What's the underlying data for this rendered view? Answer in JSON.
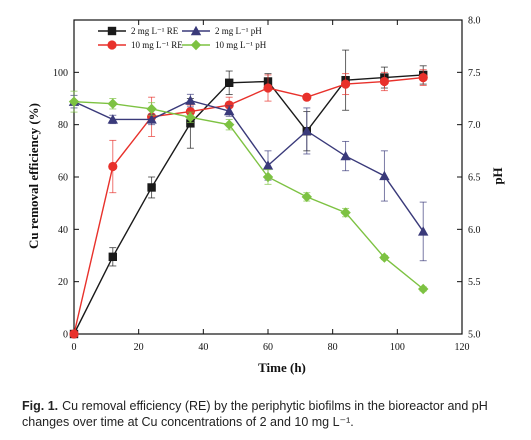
{
  "chart_data": {
    "type": "line",
    "xlabel": "Time (h)",
    "ylabel_left": "Cu removal efficiency (%)",
    "ylabel_right": "pH",
    "xlim": [
      0,
      120
    ],
    "ylim_left": [
      0,
      120
    ],
    "ylim_right": [
      5.0,
      8.0
    ],
    "x_ticks": [
      "0",
      "20",
      "40",
      "60",
      "80",
      "100",
      "120"
    ],
    "y_left_ticks": [
      "0",
      "20",
      "40",
      "60",
      "80",
      "100"
    ],
    "y_right_ticks": [
      "5.0",
      "5.5",
      "6.0",
      "6.5",
      "7.0",
      "7.5",
      "8.0"
    ],
    "grid": false,
    "legend_position": "top-left",
    "series": [
      {
        "name": "2 mg L⁻¹ RE",
        "axis": "left",
        "color": "#1a1a1a",
        "marker": "square",
        "x": [
          0,
          12,
          24,
          36,
          48,
          60,
          72,
          84,
          96,
          108
        ],
        "y": [
          0,
          29.5,
          56,
          80.5,
          96,
          96.5,
          77.5,
          97,
          98,
          99
        ],
        "err": [
          0,
          3.5,
          4,
          9.5,
          4.5,
          3,
          7.5,
          11.5,
          4,
          3.5
        ]
      },
      {
        "name": "10 mg L⁻¹ RE",
        "axis": "left",
        "color": "#e8312b",
        "marker": "circle",
        "x": [
          0,
          12,
          24,
          36,
          48,
          60,
          72,
          84,
          96,
          108
        ],
        "y": [
          0,
          64,
          83,
          85,
          87.5,
          94,
          90.5,
          95.5,
          96.5,
          98
        ],
        "err": [
          0,
          10,
          7.5,
          2.5,
          3,
          5,
          1,
          4,
          3.5,
          3
        ]
      },
      {
        "name": "2 mg L⁻¹ pH",
        "axis": "right",
        "color": "#3a3a7a",
        "marker": "triangle",
        "x": [
          0,
          12,
          24,
          36,
          48,
          60,
          72,
          84,
          96,
          108
        ],
        "y": [
          7.22,
          7.05,
          7.05,
          7.23,
          7.13,
          6.61,
          6.94,
          6.7,
          6.51,
          5.98
        ],
        "err": [
          0.06,
          0.04,
          0.05,
          0.06,
          0.05,
          0.14,
          0.22,
          0.14,
          0.24,
          0.28
        ]
      },
      {
        "name": "10 mg L⁻¹ pH",
        "axis": "right",
        "color": "#7dc242",
        "marker": "diamond",
        "x": [
          0,
          12,
          24,
          36,
          48,
          60,
          72,
          84,
          96,
          108
        ],
        "y": [
          7.22,
          7.2,
          7.15,
          7.07,
          7.0,
          6.5,
          6.31,
          6.16,
          5.73,
          5.43
        ],
        "err": [
          0.1,
          0.05,
          0.06,
          0.05,
          0.05,
          0.07,
          0.04,
          0.04,
          0.02,
          0.02
        ]
      }
    ]
  },
  "caption": {
    "lead": "Fig. 1.",
    "text": "Cu removal efficiency (RE) by the periphytic biofilms in the bioreactor and pH changes over time at Cu concentrations of 2 and 10 mg L⁻¹."
  }
}
